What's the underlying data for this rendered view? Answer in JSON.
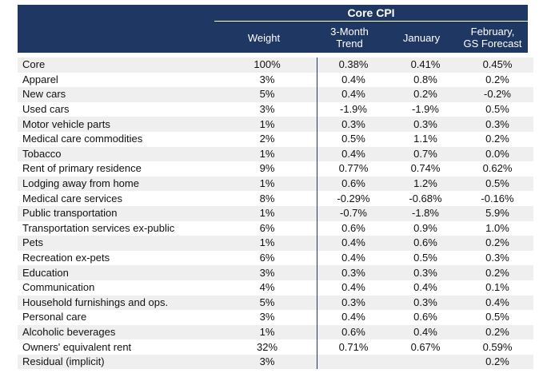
{
  "table": {
    "group_title": "Core CPI",
    "columns": [
      "Weight",
      "3-Month\nTrend",
      "January",
      "February,\nGS Forecast"
    ],
    "rows": [
      {
        "label": "Core",
        "weight": "100%",
        "trend": "0.38%",
        "january": "0.41%",
        "forecast": "0.45%"
      },
      {
        "label": "Apparel",
        "weight": "3%",
        "trend": "0.4%",
        "january": "0.8%",
        "forecast": "0.2%"
      },
      {
        "label": "New cars",
        "weight": "5%",
        "trend": "0.4%",
        "january": "0.2%",
        "forecast": "-0.2%"
      },
      {
        "label": "Used cars",
        "weight": "3%",
        "trend": "-1.9%",
        "january": "-1.9%",
        "forecast": "0.5%"
      },
      {
        "label": "Motor vehicle parts",
        "weight": "1%",
        "trend": "0.3%",
        "january": "0.3%",
        "forecast": "0.3%"
      },
      {
        "label": "Medical care commodities",
        "weight": "2%",
        "trend": "0.5%",
        "january": "1.1%",
        "forecast": "0.2%"
      },
      {
        "label": "Tobacco",
        "weight": "1%",
        "trend": "0.4%",
        "january": "0.7%",
        "forecast": "0.0%"
      },
      {
        "label": "Rent of primary residence",
        "weight": "9%",
        "trend": "0.77%",
        "january": "0.74%",
        "forecast": "0.62%"
      },
      {
        "label": "Lodging away from home",
        "weight": "1%",
        "trend": "0.6%",
        "january": "1.2%",
        "forecast": "0.5%"
      },
      {
        "label": "Medical care services",
        "weight": "8%",
        "trend": "-0.29%",
        "january": "-0.68%",
        "forecast": "-0.16%"
      },
      {
        "label": "Public transportation",
        "weight": "1%",
        "trend": "-0.7%",
        "january": "-1.8%",
        "forecast": "5.9%"
      },
      {
        "label": "Transportation services ex-public",
        "weight": "6%",
        "trend": "0.6%",
        "january": "0.9%",
        "forecast": "1.0%"
      },
      {
        "label": "Pets",
        "weight": "1%",
        "trend": "0.4%",
        "january": "0.6%",
        "forecast": "0.2%"
      },
      {
        "label": "Recreation ex-pets",
        "weight": "6%",
        "trend": "0.4%",
        "january": "0.5%",
        "forecast": "0.3%"
      },
      {
        "label": "Education",
        "weight": "3%",
        "trend": "0.3%",
        "january": "0.3%",
        "forecast": "0.2%"
      },
      {
        "label": "Communication",
        "weight": "4%",
        "trend": "0.4%",
        "january": "0.4%",
        "forecast": "0.1%"
      },
      {
        "label": "Household furnishings and ops.",
        "weight": "5%",
        "trend": "0.3%",
        "january": "0.3%",
        "forecast": "0.4%"
      },
      {
        "label": "Personal care",
        "weight": "3%",
        "trend": "0.4%",
        "january": "0.6%",
        "forecast": "0.5%"
      },
      {
        "label": "Alcoholic beverages",
        "weight": "1%",
        "trend": "0.6%",
        "january": "0.4%",
        "forecast": "0.2%"
      },
      {
        "label": "Owners' equivalent rent",
        "weight": "32%",
        "trend": "0.71%",
        "january": "0.67%",
        "forecast": "0.59%"
      },
      {
        "label": "Residual (implicit)",
        "weight": "3%",
        "trend": "",
        "january": "",
        "forecast": "0.2%"
      }
    ]
  },
  "colors": {
    "header_bg": "#1f3763",
    "stripe": "#efefef"
  }
}
